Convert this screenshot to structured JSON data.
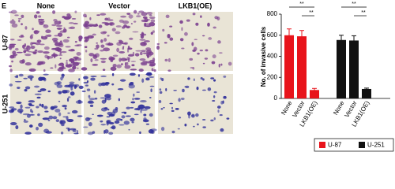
{
  "figure": {
    "panel": "E",
    "columns": [
      "None",
      "Vector",
      "LKB1(OE)"
    ],
    "rows": [
      "U-87",
      "U-251"
    ]
  },
  "chart_data": {
    "type": "bar",
    "y_label": "No. of invasive cells",
    "categories": [
      "None",
      "Vector",
      "LKB1(OE)"
    ],
    "series": [
      {
        "name": "U-87",
        "color": "#e8141b",
        "values": [
          600,
          590,
          80
        ],
        "errors": [
          60,
          55,
          15
        ]
      },
      {
        "name": "U-251",
        "color": "#111111",
        "values": [
          555,
          550,
          90
        ],
        "errors": [
          45,
          45,
          8
        ]
      }
    ],
    "ylim": [
      0,
      800
    ],
    "yticks": [
      0,
      200,
      400,
      600,
      800
    ],
    "annotations": [
      "**",
      "**",
      "**",
      "**"
    ],
    "legend": "bottom"
  }
}
